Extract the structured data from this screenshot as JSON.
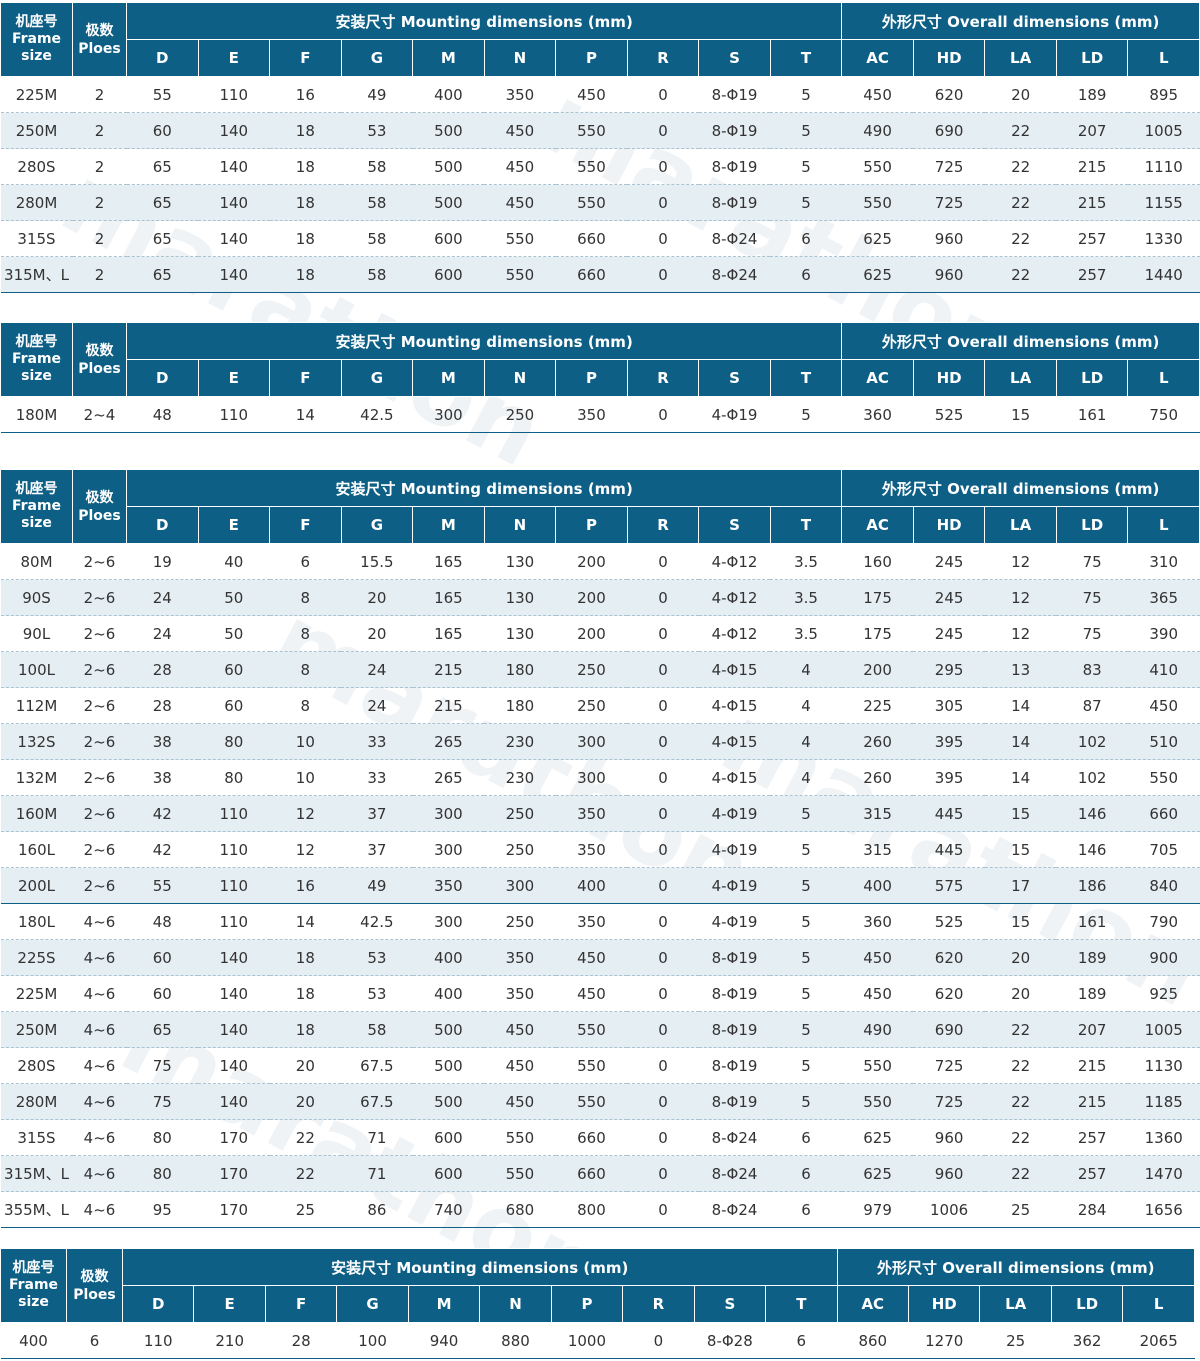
{
  "header": {
    "frame_zh": "机座号",
    "frame_en_1": "Frame",
    "frame_en_2": "size",
    "poles_zh": "极数",
    "poles_en": "Ploes",
    "mounting": "安装尺寸 Mounting dimensions (mm)",
    "overall": "外形尺寸 Overall dimensions (mm)",
    "cols": [
      "D",
      "E",
      "F",
      "G",
      "M",
      "N",
      "P",
      "R",
      "S",
      "T",
      "AC",
      "HD",
      "LA",
      "LD",
      "L"
    ]
  },
  "watermark": "marathon",
  "colors": {
    "header_bg": "#0d5f86",
    "row_alt": "#e5eef3"
  },
  "tables": [
    {
      "rows": [
        [
          "225M",
          "2",
          "55",
          "110",
          "16",
          "49",
          "400",
          "350",
          "450",
          "0",
          "8-Φ19",
          "5",
          "450",
          "620",
          "20",
          "189",
          "895"
        ],
        [
          "250M",
          "2",
          "60",
          "140",
          "18",
          "53",
          "500",
          "450",
          "550",
          "0",
          "8-Φ19",
          "5",
          "490",
          "690",
          "22",
          "207",
          "1005"
        ],
        [
          "280S",
          "2",
          "65",
          "140",
          "18",
          "58",
          "500",
          "450",
          "550",
          "0",
          "8-Φ19",
          "5",
          "550",
          "725",
          "22",
          "215",
          "1110"
        ],
        [
          "280M",
          "2",
          "65",
          "140",
          "18",
          "58",
          "500",
          "450",
          "550",
          "0",
          "8-Φ19",
          "5",
          "550",
          "725",
          "22",
          "215",
          "1155"
        ],
        [
          "315S",
          "2",
          "65",
          "140",
          "18",
          "58",
          "600",
          "550",
          "660",
          "0",
          "8-Φ24",
          "6",
          "625",
          "960",
          "22",
          "257",
          "1330"
        ],
        [
          "315M、L",
          "2",
          "65",
          "140",
          "18",
          "58",
          "600",
          "550",
          "660",
          "0",
          "8-Φ24",
          "6",
          "625",
          "960",
          "22",
          "257",
          "1440"
        ]
      ]
    },
    {
      "rows": [
        [
          "180M",
          "2~4",
          "48",
          "110",
          "14",
          "42.5",
          "300",
          "250",
          "350",
          "0",
          "4-Φ19",
          "5",
          "360",
          "525",
          "15",
          "161",
          "750"
        ]
      ]
    },
    {
      "rows": [
        [
          "80M",
          "2~6",
          "19",
          "40",
          "6",
          "15.5",
          "165",
          "130",
          "200",
          "0",
          "4-Φ12",
          "3.5",
          "160",
          "245",
          "12",
          "75",
          "310"
        ],
        [
          "90S",
          "2~6",
          "24",
          "50",
          "8",
          "20",
          "165",
          "130",
          "200",
          "0",
          "4-Φ12",
          "3.5",
          "175",
          "245",
          "12",
          "75",
          "365"
        ],
        [
          "90L",
          "2~6",
          "24",
          "50",
          "8",
          "20",
          "165",
          "130",
          "200",
          "0",
          "4-Φ12",
          "3.5",
          "175",
          "245",
          "12",
          "75",
          "390"
        ],
        [
          "100L",
          "2~6",
          "28",
          "60",
          "8",
          "24",
          "215",
          "180",
          "250",
          "0",
          "4-Φ15",
          "4",
          "200",
          "295",
          "13",
          "83",
          "410"
        ],
        [
          "112M",
          "2~6",
          "28",
          "60",
          "8",
          "24",
          "215",
          "180",
          "250",
          "0",
          "4-Φ15",
          "4",
          "225",
          "305",
          "14",
          "87",
          "450"
        ],
        [
          "132S",
          "2~6",
          "38",
          "80",
          "10",
          "33",
          "265",
          "230",
          "300",
          "0",
          "4-Φ15",
          "4",
          "260",
          "395",
          "14",
          "102",
          "510"
        ],
        [
          "132M",
          "2~6",
          "38",
          "80",
          "10",
          "33",
          "265",
          "230",
          "300",
          "0",
          "4-Φ15",
          "4",
          "260",
          "395",
          "14",
          "102",
          "550"
        ],
        [
          "160M",
          "2~6",
          "42",
          "110",
          "12",
          "37",
          "300",
          "250",
          "350",
          "0",
          "4-Φ19",
          "5",
          "315",
          "445",
          "15",
          "146",
          "660"
        ],
        [
          "160L",
          "2~6",
          "42",
          "110",
          "12",
          "37",
          "300",
          "250",
          "350",
          "0",
          "4-Φ19",
          "5",
          "315",
          "445",
          "15",
          "146",
          "705"
        ],
        [
          "200L",
          "2~6",
          "55",
          "110",
          "16",
          "49",
          "350",
          "300",
          "400",
          "0",
          "4-Φ19",
          "5",
          "400",
          "575",
          "17",
          "186",
          "840"
        ],
        [
          "180L",
          "4~6",
          "48",
          "110",
          "14",
          "42.5",
          "300",
          "250",
          "350",
          "0",
          "4-Φ19",
          "5",
          "360",
          "525",
          "15",
          "161",
          "790"
        ],
        [
          "225S",
          "4~6",
          "60",
          "140",
          "18",
          "53",
          "400",
          "350",
          "450",
          "0",
          "8-Φ19",
          "5",
          "450",
          "620",
          "20",
          "189",
          "900"
        ],
        [
          "225M",
          "4~6",
          "60",
          "140",
          "18",
          "53",
          "400",
          "350",
          "450",
          "0",
          "8-Φ19",
          "5",
          "450",
          "620",
          "20",
          "189",
          "925"
        ],
        [
          "250M",
          "4~6",
          "65",
          "140",
          "18",
          "58",
          "500",
          "450",
          "550",
          "0",
          "8-Φ19",
          "5",
          "490",
          "690",
          "22",
          "207",
          "1005"
        ],
        [
          "280S",
          "4~6",
          "75",
          "140",
          "20",
          "67.5",
          "500",
          "450",
          "550",
          "0",
          "8-Φ19",
          "5",
          "550",
          "725",
          "22",
          "215",
          "1130"
        ],
        [
          "280M",
          "4~6",
          "75",
          "140",
          "20",
          "67.5",
          "500",
          "450",
          "550",
          "0",
          "8-Φ19",
          "5",
          "550",
          "725",
          "22",
          "215",
          "1185"
        ],
        [
          "315S",
          "4~6",
          "80",
          "170",
          "22",
          "71",
          "600",
          "550",
          "660",
          "0",
          "8-Φ24",
          "6",
          "625",
          "960",
          "22",
          "257",
          "1360"
        ],
        [
          "315M、L",
          "4~6",
          "80",
          "170",
          "22",
          "71",
          "600",
          "550",
          "660",
          "0",
          "8-Φ24",
          "6",
          "625",
          "960",
          "22",
          "257",
          "1470"
        ],
        [
          "355M、L",
          "4~6",
          "95",
          "170",
          "25",
          "86",
          "740",
          "680",
          "800",
          "0",
          "8-Φ24",
          "6",
          "979",
          "1006",
          "25",
          "284",
          "1656"
        ]
      ]
    },
    {
      "rows": [
        [
          "400",
          "6",
          "110",
          "210",
          "28",
          "100",
          "940",
          "880",
          "1000",
          "0",
          "8-Φ28",
          "6",
          "860",
          "1270",
          "25",
          "362",
          "2065"
        ]
      ]
    }
  ]
}
